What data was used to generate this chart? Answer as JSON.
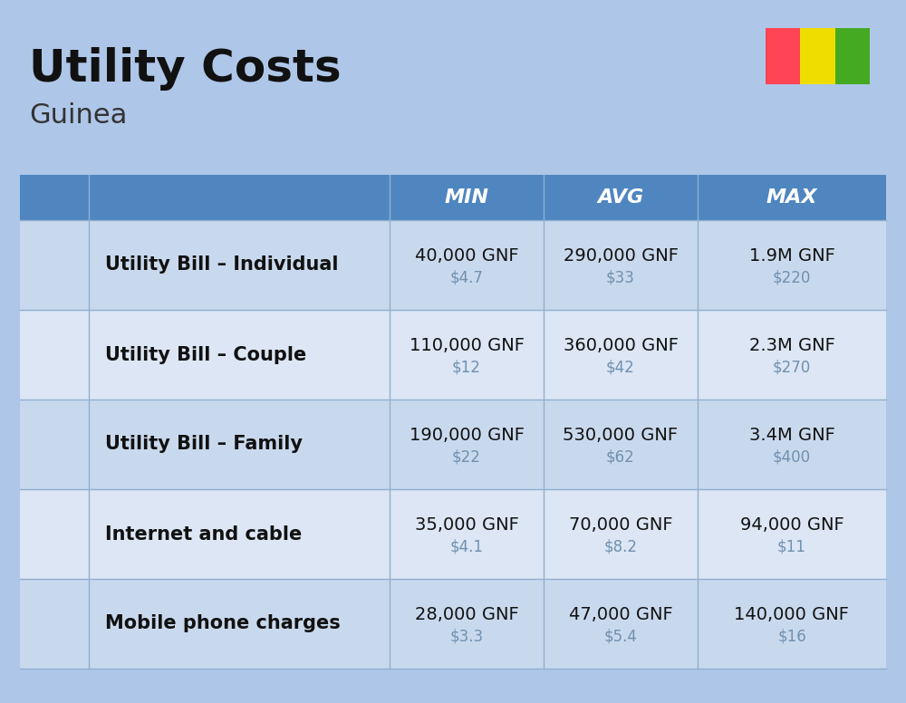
{
  "title": "Utility Costs",
  "subtitle": "Guinea",
  "background_color": "#aec6e8",
  "header_bg_color": "#4f86c0",
  "header_text_color": "#ffffff",
  "row_bg_colors": [
    "#c9d9ed",
    "#dce6f4"
  ],
  "col_divider_color": "#90afd0",
  "header_labels": [
    "MIN",
    "AVG",
    "MAX"
  ],
  "rows": [
    {
      "label": "Utility Bill – Individual",
      "min_gnf": "40,000 GNF",
      "min_usd": "$4.7",
      "avg_gnf": "290,000 GNF",
      "avg_usd": "$33",
      "max_gnf": "1.9M GNF",
      "max_usd": "$220"
    },
    {
      "label": "Utility Bill – Couple",
      "min_gnf": "110,000 GNF",
      "min_usd": "$12",
      "avg_gnf": "360,000 GNF",
      "avg_usd": "$42",
      "max_gnf": "2.3M GNF",
      "max_usd": "$270"
    },
    {
      "label": "Utility Bill – Family",
      "min_gnf": "190,000 GNF",
      "min_usd": "$22",
      "avg_gnf": "530,000 GNF",
      "avg_usd": "$62",
      "max_gnf": "3.4M GNF",
      "max_usd": "$400"
    },
    {
      "label": "Internet and cable",
      "min_gnf": "35,000 GNF",
      "min_usd": "$4.1",
      "avg_gnf": "70,000 GNF",
      "avg_usd": "$8.2",
      "max_gnf": "94,000 GNF",
      "max_usd": "$11"
    },
    {
      "label": "Mobile phone charges",
      "min_gnf": "28,000 GNF",
      "min_usd": "$3.3",
      "avg_gnf": "47,000 GNF",
      "avg_usd": "$5.4",
      "max_gnf": "140,000 GNF",
      "max_usd": "$16"
    }
  ],
  "flag_colors": [
    "#ff4455",
    "#f0dd00",
    "#44aa22"
  ],
  "title_fontsize": 36,
  "subtitle_fontsize": 22,
  "header_fontsize": 16,
  "label_fontsize": 15,
  "value_fontsize": 14,
  "usd_fontsize": 12
}
